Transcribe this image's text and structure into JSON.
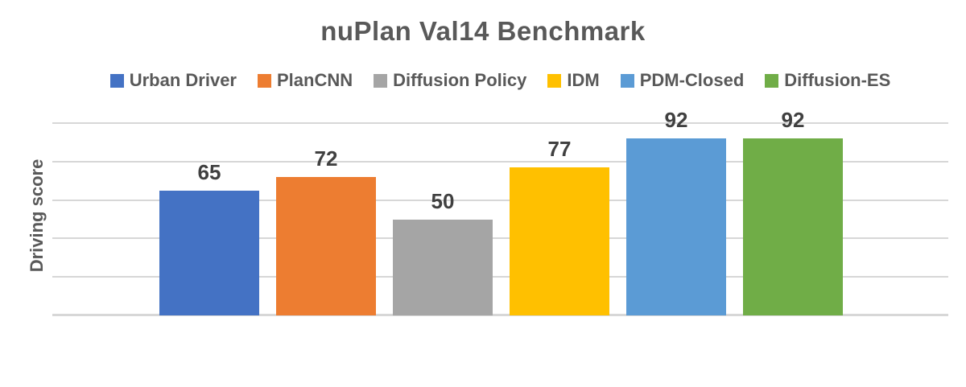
{
  "chart_data": {
    "type": "bar",
    "title": "nuPlan Val14 Benchmark",
    "xlabel": "",
    "ylabel": "Driving score",
    "categories": [
      "Urban Driver",
      "PlanCNN",
      "Diffusion Policy",
      "IDM",
      "PDM-Closed",
      "Diffusion-ES"
    ],
    "values": [
      65,
      72,
      50,
      77,
      92,
      92
    ],
    "series_colors": [
      "#4472C4",
      "#ED7D31",
      "#A5A5A5",
      "#FFC000",
      "#5B9BD5",
      "#70AD47"
    ],
    "data_labels": [
      "65",
      "72",
      "50",
      "77",
      "92",
      "92"
    ],
    "ylim": [
      0,
      100
    ],
    "gridline_values": [
      100,
      80,
      60,
      40,
      20,
      0
    ],
    "grid": true,
    "legend_position": "top",
    "x_tick_labels_shown": false,
    "y_tick_labels_shown": false
  },
  "legend": {
    "items": [
      {
        "label": "Urban Driver",
        "color": "#4472C4"
      },
      {
        "label": "PlanCNN",
        "color": "#ED7D31"
      },
      {
        "label": "Diffusion Policy",
        "color": "#A5A5A5"
      },
      {
        "label": "IDM",
        "color": "#FFC000"
      },
      {
        "label": "PDM-Closed",
        "color": "#5B9BD5"
      },
      {
        "label": "Diffusion-ES",
        "color": "#70AD47"
      }
    ]
  },
  "colors": {
    "background": "#FFFFFF",
    "title_text": "#595959",
    "legend_text": "#595959",
    "axis_title_text": "#595959",
    "data_label_text": "#404040",
    "gridline": "#D7D7D7",
    "axis_line": "#D7D7D7"
  }
}
